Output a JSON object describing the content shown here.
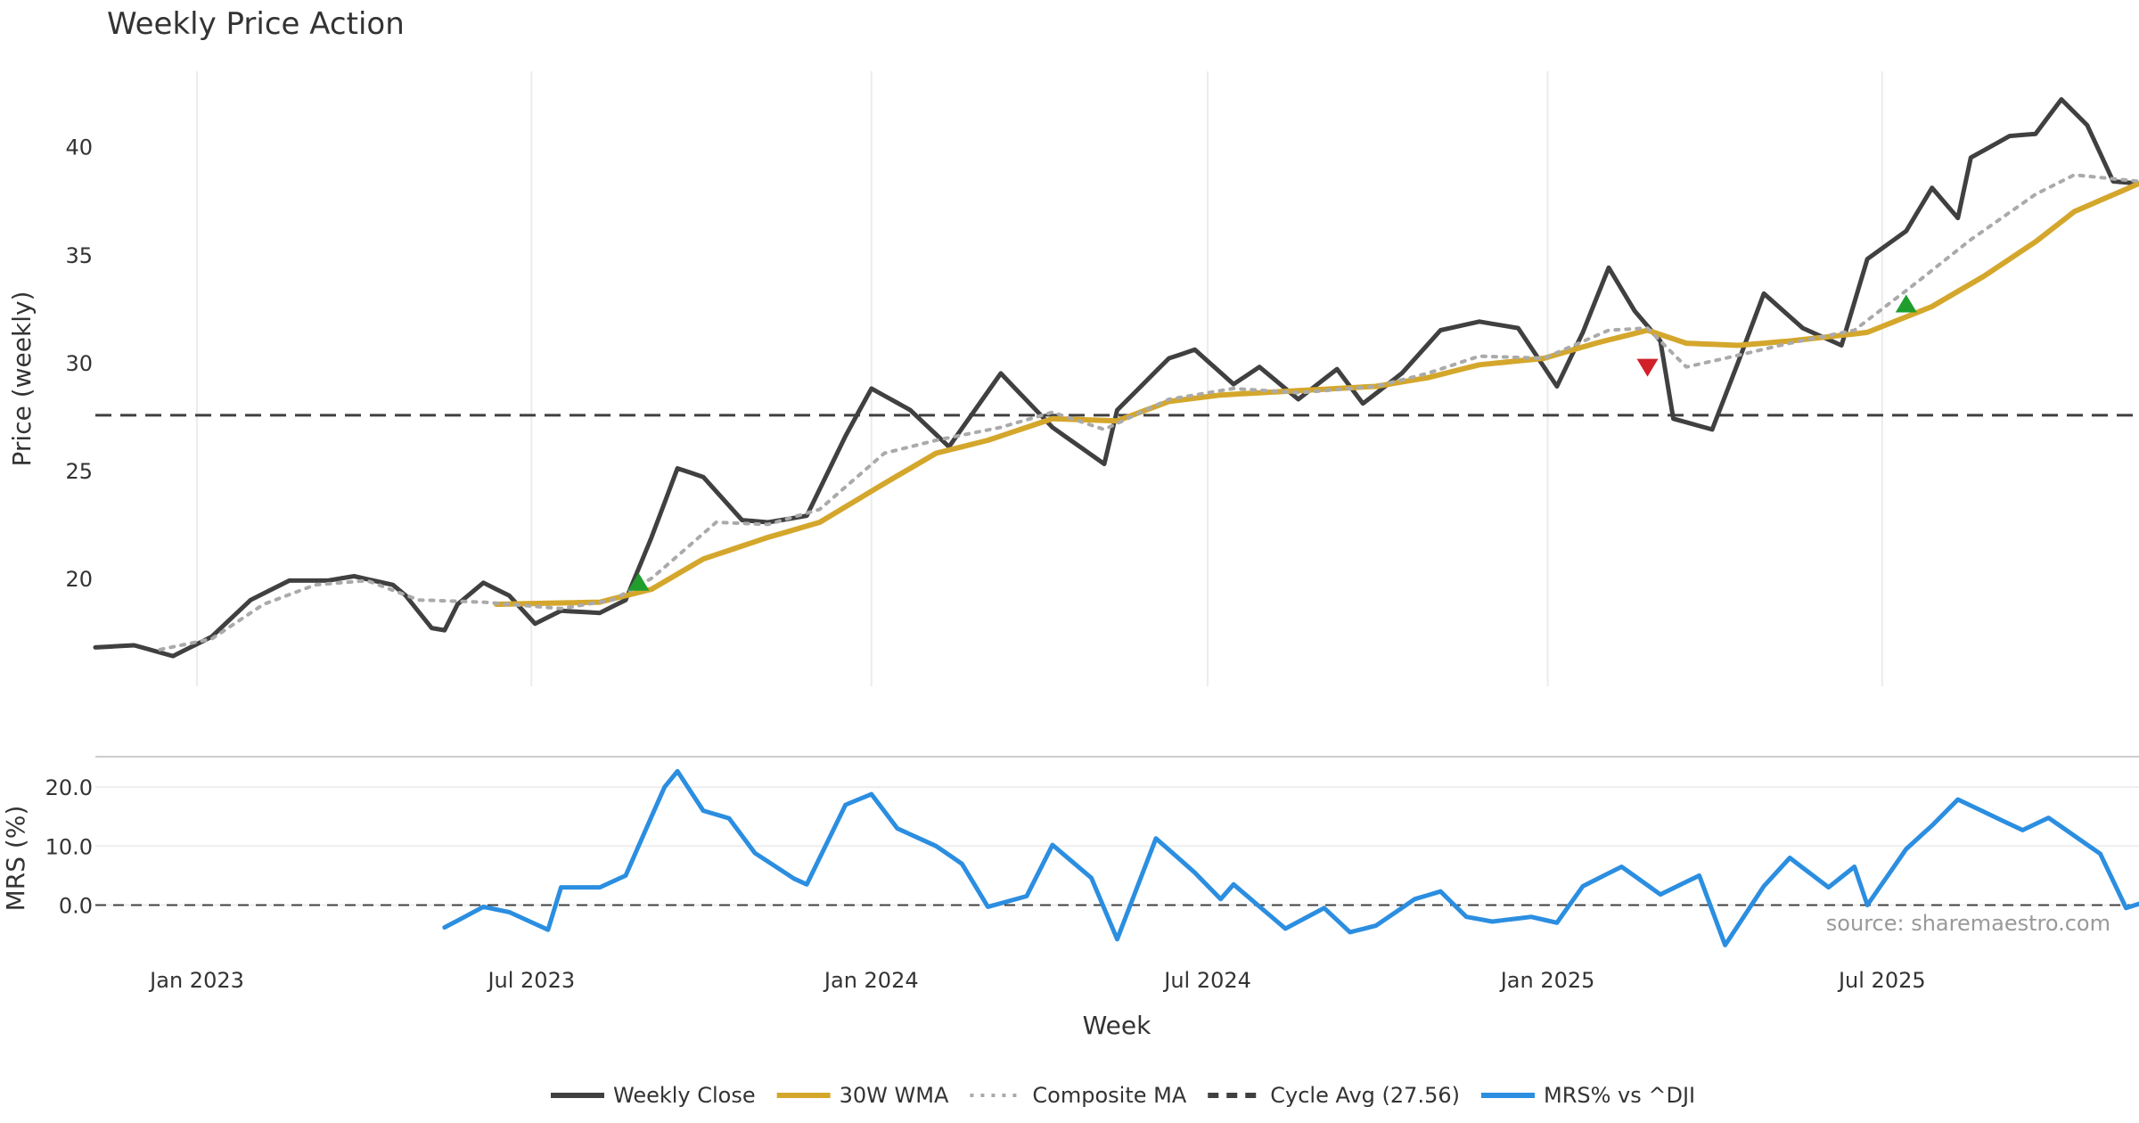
{
  "chart_data": {
    "type": "line",
    "title": "Weekly Price Action",
    "xlabel": "Week",
    "source": "source: sharemaestro.com",
    "x_ticks": [
      "Jan 2023",
      "Jul 2023",
      "Jan 2024",
      "Jul 2024",
      "Jan 2025",
      "Jul 2025"
    ],
    "x_range": [
      "2022-11-07",
      "2025-11-17"
    ],
    "price_panel": {
      "ylabel": "Price (weekly)",
      "ylim": [
        15.0,
        43.5
      ],
      "yticks": [
        "20",
        "25",
        "30",
        "35",
        "40"
      ],
      "cycle_avg": 27.56,
      "signals": [
        {
          "date": "2023-08-28",
          "value": 19.8,
          "kind": "buy"
        },
        {
          "date": "2025-02-24",
          "value": 29.8,
          "kind": "sell"
        },
        {
          "date": "2025-07-14",
          "value": 32.7,
          "kind": "buy"
        }
      ],
      "series": [
        {
          "name": "Weekly Close",
          "color": "#404040",
          "style": "solid",
          "keys": [
            [
              "2022-11-07",
              16.8
            ],
            [
              "2022-11-28",
              16.9
            ],
            [
              "2022-12-19",
              16.4
            ],
            [
              "2023-01-09",
              17.3
            ],
            [
              "2023-01-30",
              19.0
            ],
            [
              "2023-02-20",
              19.9
            ],
            [
              "2023-03-13",
              19.9
            ],
            [
              "2023-03-27",
              20.1
            ],
            [
              "2023-04-17",
              19.7
            ],
            [
              "2023-04-24",
              19.2
            ],
            [
              "2023-05-08",
              17.7
            ],
            [
              "2023-05-15",
              17.6
            ],
            [
              "2023-05-22",
              18.8
            ],
            [
              "2023-06-05",
              19.8
            ],
            [
              "2023-06-19",
              19.2
            ],
            [
              "2023-07-03",
              17.9
            ],
            [
              "2023-07-17",
              18.5
            ],
            [
              "2023-08-07",
              18.4
            ],
            [
              "2023-08-21",
              19.0
            ],
            [
              "2023-09-04",
              21.9
            ],
            [
              "2023-09-18",
              25.1
            ],
            [
              "2023-10-02",
              24.7
            ],
            [
              "2023-10-23",
              22.7
            ],
            [
              "2023-11-06",
              22.6
            ],
            [
              "2023-11-27",
              22.9
            ],
            [
              "2023-12-18",
              26.6
            ],
            [
              "2024-01-01",
              28.8
            ],
            [
              "2024-01-22",
              27.8
            ],
            [
              "2024-02-12",
              26.1
            ],
            [
              "2024-03-11",
              29.5
            ],
            [
              "2024-04-08",
              27.0
            ],
            [
              "2024-05-06",
              25.3
            ],
            [
              "2024-05-13",
              27.8
            ],
            [
              "2024-06-10",
              30.2
            ],
            [
              "2024-06-24",
              30.6
            ],
            [
              "2024-07-15",
              29.0
            ],
            [
              "2024-07-29",
              29.8
            ],
            [
              "2024-08-19",
              28.3
            ],
            [
              "2024-09-09",
              29.7
            ],
            [
              "2024-09-23",
              28.1
            ],
            [
              "2024-10-14",
              29.5
            ],
            [
              "2024-11-04",
              31.5
            ],
            [
              "2024-11-25",
              31.9
            ],
            [
              "2024-12-16",
              31.6
            ],
            [
              "2025-01-06",
              28.9
            ],
            [
              "2025-01-20",
              31.4
            ],
            [
              "2025-02-03",
              34.4
            ],
            [
              "2025-02-17",
              32.4
            ],
            [
              "2025-03-03",
              31.0
            ],
            [
              "2025-03-10",
              27.4
            ],
            [
              "2025-03-31",
              26.9
            ],
            [
              "2025-04-14",
              30.0
            ],
            [
              "2025-04-28",
              33.2
            ],
            [
              "2025-05-19",
              31.6
            ],
            [
              "2025-06-09",
              30.8
            ],
            [
              "2025-06-23",
              34.8
            ],
            [
              "2025-07-14",
              36.1
            ],
            [
              "2025-07-28",
              38.1
            ],
            [
              "2025-08-11",
              36.7
            ],
            [
              "2025-08-18",
              39.5
            ],
            [
              "2025-09-08",
              40.5
            ],
            [
              "2025-09-22",
              40.6
            ],
            [
              "2025-10-06",
              42.2
            ],
            [
              "2025-10-20",
              41.0
            ],
            [
              "2025-11-03",
              38.4
            ],
            [
              "2025-11-17",
              38.3
            ]
          ]
        },
        {
          "name": "30W WMA",
          "color": "#d4a72c",
          "style": "solid",
          "keys": [
            [
              "2023-06-12",
              18.8
            ],
            [
              "2023-08-07",
              18.9
            ],
            [
              "2023-09-04",
              19.5
            ],
            [
              "2023-10-02",
              20.9
            ],
            [
              "2023-11-06",
              21.9
            ],
            [
              "2023-12-04",
              22.6
            ],
            [
              "2024-01-08",
              24.4
            ],
            [
              "2024-02-05",
              25.8
            ],
            [
              "2024-03-04",
              26.4
            ],
            [
              "2024-04-08",
              27.4
            ],
            [
              "2024-05-13",
              27.3
            ],
            [
              "2024-06-10",
              28.2
            ],
            [
              "2024-07-08",
              28.5
            ],
            [
              "2024-08-19",
              28.7
            ],
            [
              "2024-09-30",
              28.9
            ],
            [
              "2024-10-28",
              29.3
            ],
            [
              "2024-11-25",
              29.9
            ],
            [
              "2024-12-30",
              30.2
            ],
            [
              "2025-01-27",
              30.9
            ],
            [
              "2025-02-24",
              31.5
            ],
            [
              "2025-03-17",
              30.9
            ],
            [
              "2025-04-14",
              30.8
            ],
            [
              "2025-05-12",
              31.0
            ],
            [
              "2025-06-23",
              31.4
            ],
            [
              "2025-07-28",
              32.6
            ],
            [
              "2025-08-25",
              34.0
            ],
            [
              "2025-09-22",
              35.6
            ],
            [
              "2025-10-13",
              37.0
            ],
            [
              "2025-11-17",
              38.3
            ]
          ]
        },
        {
          "name": "Composite MA",
          "color": "#aaaaaa",
          "style": "dotted",
          "keys": [
            [
              "2022-12-12",
              16.7
            ],
            [
              "2023-01-09",
              17.2
            ],
            [
              "2023-02-06",
              18.8
            ],
            [
              "2023-03-06",
              19.7
            ],
            [
              "2023-04-03",
              19.9
            ],
            [
              "2023-05-01",
              19.0
            ],
            [
              "2023-06-05",
              18.9
            ],
            [
              "2023-07-17",
              18.6
            ],
            [
              "2023-08-14",
              19.0
            ],
            [
              "2023-09-04",
              20.0
            ],
            [
              "2023-10-09",
              22.6
            ],
            [
              "2023-11-06",
              22.5
            ],
            [
              "2023-12-04",
              23.2
            ],
            [
              "2024-01-08",
              25.8
            ],
            [
              "2024-02-05",
              26.4
            ],
            [
              "2024-03-11",
              27.0
            ],
            [
              "2024-04-08",
              27.7
            ],
            [
              "2024-05-06",
              26.9
            ],
            [
              "2024-06-10",
              28.3
            ],
            [
              "2024-07-15",
              28.8
            ],
            [
              "2024-08-19",
              28.6
            ],
            [
              "2024-09-30",
              28.9
            ],
            [
              "2024-10-28",
              29.5
            ],
            [
              "2024-11-25",
              30.3
            ],
            [
              "2024-12-30",
              30.2
            ],
            [
              "2025-02-03",
              31.5
            ],
            [
              "2025-02-24",
              31.6
            ],
            [
              "2025-03-17",
              29.8
            ],
            [
              "2025-04-07",
              30.2
            ],
            [
              "2025-05-12",
              30.9
            ],
            [
              "2025-06-16",
              31.5
            ],
            [
              "2025-07-21",
              33.8
            ],
            [
              "2025-08-18",
              35.7
            ],
            [
              "2025-09-22",
              37.8
            ],
            [
              "2025-10-13",
              38.7
            ],
            [
              "2025-11-17",
              38.4
            ]
          ]
        }
      ]
    },
    "mrs_panel": {
      "ylabel": "MRS (%)",
      "ylim": [
        -9.0,
        23.5
      ],
      "yticks": [
        "20.0",
        "10.0",
        "0.0"
      ],
      "series": [
        {
          "name": "MRS% vs ^DJI",
          "color": "#2b8ee0",
          "style": "solid",
          "keys": [
            [
              "2023-05-15",
              -3.8
            ],
            [
              "2023-06-05",
              -0.3
            ],
            [
              "2023-06-19",
              -1.2
            ],
            [
              "2023-07-10",
              -4.2
            ],
            [
              "2023-07-17",
              3.0
            ],
            [
              "2023-08-07",
              3.0
            ],
            [
              "2023-08-21",
              5.0
            ],
            [
              "2023-09-11",
              20.0
            ],
            [
              "2023-09-18",
              22.7
            ],
            [
              "2023-10-02",
              16.0
            ],
            [
              "2023-10-16",
              14.7
            ],
            [
              "2023-10-30",
              8.8
            ],
            [
              "2023-11-20",
              4.5
            ],
            [
              "2023-11-27",
              3.5
            ],
            [
              "2023-12-18",
              17.0
            ],
            [
              "2024-01-01",
              18.8
            ],
            [
              "2024-01-15",
              13.0
            ],
            [
              "2024-02-05",
              10.0
            ],
            [
              "2024-02-19",
              7.0
            ],
            [
              "2024-03-04",
              -0.3
            ],
            [
              "2024-03-25",
              1.5
            ],
            [
              "2024-04-08",
              10.2
            ],
            [
              "2024-04-29",
              4.6
            ],
            [
              "2024-05-13",
              -5.8
            ],
            [
              "2024-06-03",
              11.3
            ],
            [
              "2024-06-24",
              5.5
            ],
            [
              "2024-07-08",
              1.0
            ],
            [
              "2024-07-15",
              3.5
            ],
            [
              "2024-08-12",
              -4.0
            ],
            [
              "2024-09-02",
              -0.5
            ],
            [
              "2024-09-16",
              -4.6
            ],
            [
              "2024-09-30",
              -3.5
            ],
            [
              "2024-10-21",
              1.0
            ],
            [
              "2024-11-04",
              2.3
            ],
            [
              "2024-11-18",
              -2.0
            ],
            [
              "2024-12-02",
              -2.8
            ],
            [
              "2024-12-23",
              -2.0
            ],
            [
              "2025-01-06",
              -3.0
            ],
            [
              "2025-01-20",
              3.2
            ],
            [
              "2025-02-10",
              6.5
            ],
            [
              "2025-03-03",
              1.8
            ],
            [
              "2025-03-24",
              5.0
            ],
            [
              "2025-04-07",
              -6.8
            ],
            [
              "2025-04-28",
              3.2
            ],
            [
              "2025-05-12",
              8.0
            ],
            [
              "2025-06-02",
              3.0
            ],
            [
              "2025-06-16",
              6.5
            ],
            [
              "2025-06-23",
              0.0
            ],
            [
              "2025-07-14",
              9.5
            ],
            [
              "2025-07-28",
              13.5
            ],
            [
              "2025-08-11",
              17.9
            ],
            [
              "2025-09-15",
              12.7
            ],
            [
              "2025-09-29",
              14.8
            ],
            [
              "2025-10-27",
              8.7
            ],
            [
              "2025-11-10",
              -0.5
            ],
            [
              "2025-11-17",
              0.2
            ]
          ]
        }
      ]
    },
    "legend": [
      {
        "label": "Weekly Close",
        "color": "#404040",
        "style": "solid"
      },
      {
        "label": "30W WMA",
        "color": "#d4a72c",
        "style": "solid"
      },
      {
        "label": "Composite MA",
        "color": "#aaaaaa",
        "style": "dotted"
      },
      {
        "label": "Cycle Avg (27.56)",
        "color": "#404040",
        "style": "dashed"
      },
      {
        "label": "MRS% vs ^DJI",
        "color": "#2b8ee0",
        "style": "solid"
      }
    ]
  }
}
